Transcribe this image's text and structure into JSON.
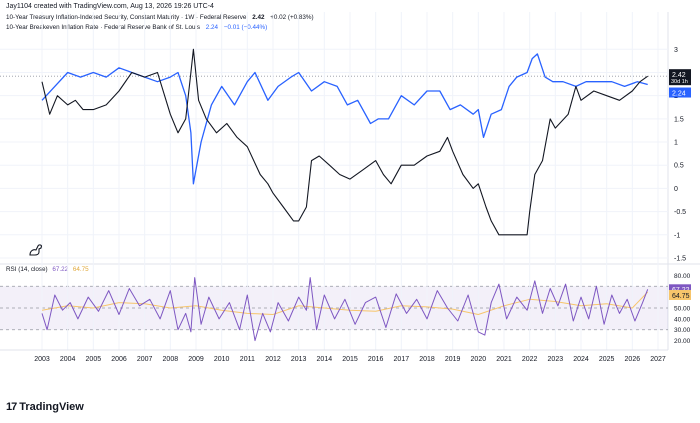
{
  "header": {
    "caption": "Jay1104 created with TradingView.com, Aug 13, 2026 19:26 UTC-4"
  },
  "legend": {
    "series1": {
      "label": "10-Year Treasury Inflation-Indexed Security, Constant Maturity · 1W · Federal Reserve",
      "value": "2.42",
      "change": "+0.02 (+0.83%)",
      "color": "#131722"
    },
    "series2": {
      "label": "10-Year Breakeven Inflation Rate · Federal Reserve Bank of St. Louis",
      "value": "2.24",
      "change": "−0.01 (−0.44%)",
      "color": "#2962ff"
    }
  },
  "rsi_legend": {
    "label": "RSI (14, close)",
    "rsi_value": "67.22",
    "ma_value": "64.75",
    "rsi_color": "#7e57c2",
    "ma_color": "#f7c56b"
  },
  "price_labels": {
    "series1": "2.42",
    "series1_sub": "30d 1h",
    "series2": "2.24"
  },
  "rsi_labels": {
    "rsi": "67.22",
    "ma": "64.75"
  },
  "brand": {
    "logo": "17",
    "name": "TradingView"
  },
  "icons": {
    "dino": "dinosaur-icon"
  },
  "chart_data": [
    {
      "type": "line",
      "title": "",
      "x_range": [
        2003,
        2027
      ],
      "x_ticks": [
        "2003",
        "2004",
        "2005",
        "2006",
        "2007",
        "2008",
        "2009",
        "2010",
        "2011",
        "2012",
        "2013",
        "2014",
        "2015",
        "2016",
        "2017",
        "2018",
        "2019",
        "2020",
        "2021",
        "2022",
        "2023",
        "2024",
        "2025",
        "2026",
        "2027"
      ],
      "ylim": [
        -1.5,
        3.2
      ],
      "y_ticks": [
        "3",
        "2.5",
        "2",
        "1.5",
        "1",
        "0.5",
        "0",
        "-0.5",
        "-1",
        "-1.5"
      ],
      "grid": true,
      "dotted_line_at": 2.42,
      "series": [
        {
          "name": "10-Year Treasury Inflation-Indexed Security, Constant Maturity",
          "color": "#131722",
          "x": [
            2003.0,
            2003.3,
            2003.6,
            2004.0,
            2004.3,
            2004.6,
            2005.0,
            2005.5,
            2006.0,
            2006.5,
            2007.0,
            2007.5,
            2008.0,
            2008.3,
            2008.6,
            2008.8,
            2008.9,
            2009.1,
            2009.4,
            2009.8,
            2010.2,
            2010.6,
            2011.0,
            2011.5,
            2011.8,
            2012.0,
            2012.4,
            2012.8,
            2013.0,
            2013.3,
            2013.5,
            2013.8,
            2014.2,
            2014.6,
            2015.0,
            2015.5,
            2016.0,
            2016.3,
            2016.6,
            2017.0,
            2017.5,
            2018.0,
            2018.5,
            2018.8,
            2019.0,
            2019.4,
            2019.8,
            2020.0,
            2020.3,
            2020.5,
            2020.8,
            2021.0,
            2021.5,
            2021.9,
            2022.0,
            2022.2,
            2022.5,
            2022.8,
            2023.0,
            2023.5,
            2023.8,
            2024.0,
            2024.5,
            2025.0,
            2025.5,
            2026.0,
            2026.3,
            2026.6
          ],
          "y": [
            2.3,
            1.6,
            2.0,
            1.8,
            1.9,
            1.7,
            1.7,
            1.8,
            2.1,
            2.5,
            2.4,
            2.5,
            1.6,
            1.2,
            1.5,
            2.5,
            3.0,
            1.9,
            1.5,
            1.2,
            1.4,
            1.1,
            0.9,
            0.3,
            0.1,
            -0.1,
            -0.4,
            -0.7,
            -0.7,
            -0.4,
            0.6,
            0.7,
            0.5,
            0.3,
            0.2,
            0.4,
            0.6,
            0.3,
            0.1,
            0.5,
            0.5,
            0.7,
            0.8,
            1.1,
            0.8,
            0.3,
            0.0,
            0.1,
            -0.4,
            -0.7,
            -1.0,
            -1.0,
            -1.0,
            -1.0,
            -0.5,
            0.3,
            0.6,
            1.5,
            1.3,
            1.6,
            2.2,
            1.9,
            2.1,
            2.0,
            1.9,
            2.1,
            2.3,
            2.42
          ]
        },
        {
          "name": "10-Year Breakeven Inflation Rate",
          "color": "#2962ff",
          "x": [
            2003.0,
            2003.5,
            2004.0,
            2004.5,
            2005.0,
            2005.5,
            2006.0,
            2006.5,
            2007.0,
            2007.5,
            2008.0,
            2008.3,
            2008.6,
            2008.8,
            2008.9,
            2009.2,
            2009.6,
            2010.0,
            2010.5,
            2011.0,
            2011.3,
            2011.8,
            2012.2,
            2012.7,
            2013.0,
            2013.5,
            2014.0,
            2014.5,
            2014.9,
            2015.3,
            2015.8,
            2016.1,
            2016.5,
            2017.0,
            2017.5,
            2018.0,
            2018.5,
            2018.9,
            2019.3,
            2019.8,
            2020.0,
            2020.2,
            2020.5,
            2020.9,
            2021.2,
            2021.5,
            2021.9,
            2022.1,
            2022.3,
            2022.6,
            2022.9,
            2023.3,
            2023.8,
            2024.2,
            2024.7,
            2025.2,
            2025.7,
            2026.2,
            2026.6
          ],
          "y": [
            1.9,
            2.2,
            2.5,
            2.4,
            2.5,
            2.4,
            2.6,
            2.5,
            2.4,
            2.3,
            2.4,
            2.5,
            2.0,
            1.2,
            0.1,
            1.0,
            1.8,
            2.2,
            1.8,
            2.3,
            2.5,
            1.9,
            2.2,
            2.4,
            2.5,
            2.1,
            2.3,
            2.2,
            1.8,
            1.9,
            1.4,
            1.5,
            1.5,
            2.0,
            1.8,
            2.1,
            2.1,
            1.7,
            1.8,
            1.6,
            1.7,
            1.1,
            1.6,
            1.7,
            2.2,
            2.4,
            2.5,
            2.8,
            2.9,
            2.4,
            2.3,
            2.3,
            2.2,
            2.3,
            2.3,
            2.3,
            2.2,
            2.3,
            2.24
          ]
        }
      ]
    },
    {
      "type": "line",
      "title": "RSI (14, close)",
      "x_range": [
        2003,
        2027
      ],
      "ylim": [
        15,
        85
      ],
      "y_ticks": [
        "80.00",
        "70.00",
        "60.00",
        "50.00",
        "40.00",
        "30.00",
        "20.00"
      ],
      "bands": [
        30,
        50,
        70
      ],
      "series": [
        {
          "name": "RSI",
          "color": "#7e57c2",
          "x": [
            2003.0,
            2003.2,
            2003.5,
            2003.8,
            2004.1,
            2004.4,
            2004.8,
            2005.2,
            2005.6,
            2006.0,
            2006.4,
            2006.8,
            2007.2,
            2007.6,
            2008.0,
            2008.3,
            2008.6,
            2008.8,
            2008.95,
            2009.2,
            2009.5,
            2009.9,
            2010.3,
            2010.7,
            2011.0,
            2011.3,
            2011.6,
            2011.9,
            2012.2,
            2012.6,
            2013.0,
            2013.3,
            2013.45,
            2013.7,
            2014.0,
            2014.4,
            2014.8,
            2015.2,
            2015.6,
            2016.0,
            2016.4,
            2016.8,
            2017.2,
            2017.6,
            2018.0,
            2018.4,
            2018.8,
            2019.2,
            2019.6,
            2020.0,
            2020.25,
            2020.5,
            2020.8,
            2021.1,
            2021.5,
            2021.9,
            2022.2,
            2022.5,
            2022.8,
            2023.1,
            2023.4,
            2023.7,
            2024.0,
            2024.3,
            2024.6,
            2024.9,
            2025.2,
            2025.5,
            2025.8,
            2026.1,
            2026.4,
            2026.6
          ],
          "y": [
            45,
            30,
            62,
            48,
            55,
            40,
            60,
            47,
            66,
            44,
            68,
            52,
            58,
            40,
            66,
            30,
            45,
            28,
            78,
            35,
            60,
            40,
            55,
            30,
            62,
            20,
            45,
            28,
            55,
            38,
            60,
            48,
            78,
            30,
            62,
            40,
            58,
            35,
            55,
            60,
            32,
            63,
            45,
            58,
            40,
            66,
            50,
            38,
            62,
            28,
            25,
            55,
            72,
            40,
            60,
            48,
            75,
            45,
            68,
            52,
            72,
            38,
            60,
            40,
            70,
            35,
            62,
            45,
            58,
            38,
            55,
            67.22
          ]
        },
        {
          "name": "RSI-based MA",
          "color": "#f7c56b",
          "x": [
            2003.0,
            2004.0,
            2005.0,
            2006.0,
            2007.0,
            2008.0,
            2009.0,
            2010.0,
            2011.0,
            2012.0,
            2013.0,
            2014.0,
            2015.0,
            2016.0,
            2017.0,
            2018.0,
            2019.0,
            2020.0,
            2021.0,
            2022.0,
            2023.0,
            2024.0,
            2025.0,
            2026.0,
            2026.6
          ],
          "y": [
            48,
            52,
            50,
            55,
            54,
            50,
            52,
            48,
            45,
            44,
            52,
            50,
            48,
            47,
            52,
            51,
            49,
            44,
            52,
            58,
            56,
            52,
            54,
            50,
            64.75
          ]
        }
      ]
    }
  ]
}
